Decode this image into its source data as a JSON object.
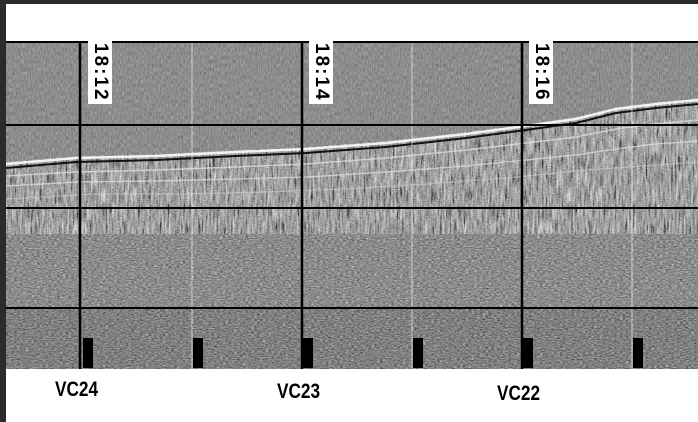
{
  "time_marks": [
    {
      "text": "18:12"
    },
    {
      "text": "18:14"
    },
    {
      "text": "18:16"
    }
  ],
  "core_labels": [
    {
      "text": "VC24"
    },
    {
      "text": "VC23"
    },
    {
      "text": "VC22"
    }
  ],
  "colors": {
    "frame": "#2b2b2b",
    "grid": "#000000",
    "water_column": "#7a7a7a",
    "fix_line": "#e8e8e8"
  }
}
